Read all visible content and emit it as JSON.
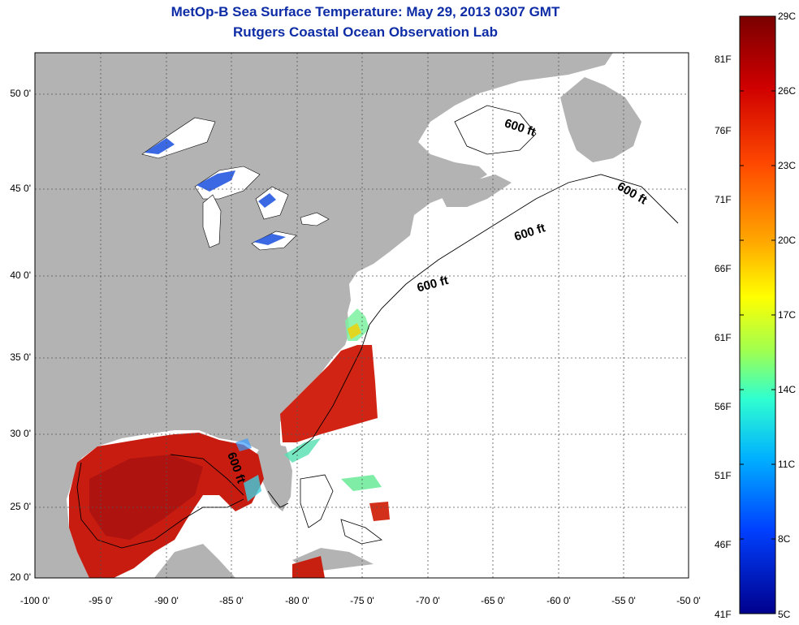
{
  "header": {
    "title": "MetOp-B Sea Surface Temperature:  May 29, 2013 0307 GMT",
    "subtitle": "Rutgers Coastal Ocean Observation Lab"
  },
  "map": {
    "lat_ticks": [
      "50 0'",
      "45 0'",
      "40 0'",
      "35 0'",
      "30 0'",
      "25 0'",
      "20 0'"
    ],
    "lon_ticks": [
      "-100 0'",
      "-95 0'",
      "-90 0'",
      "-85 0'",
      "-80 0'",
      "-75 0'",
      "-70 0'",
      "-65 0'",
      "-60 0'",
      "-55 0'",
      "-50 0'"
    ],
    "depth_labels": [
      "600 ft",
      "600 ft",
      "600 ft",
      "600 ft",
      "600 ft"
    ],
    "land_color": "#b3b3b3",
    "no_data_color": "#ffffff"
  },
  "colorbar": {
    "celsius_ticks": [
      "29C",
      "26C",
      "23C",
      "20C",
      "17C",
      "14C",
      "11C",
      "8C",
      "5C"
    ],
    "fahrenheit_ticks": [
      "81F",
      "76F",
      "71F",
      "66F",
      "61F",
      "56F",
      "51F",
      "46F",
      "41F"
    ]
  }
}
